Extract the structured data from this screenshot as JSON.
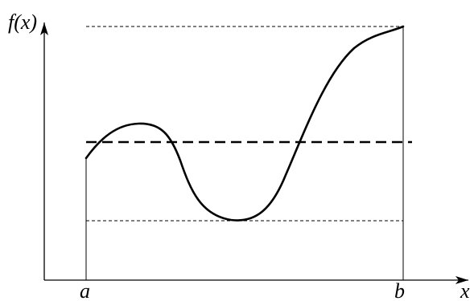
{
  "labels": {
    "y_axis": "f(x)",
    "x_axis": "x",
    "a": "a",
    "b": "b"
  },
  "colors": {
    "stroke": "#000000",
    "background": "#ffffff"
  }
}
